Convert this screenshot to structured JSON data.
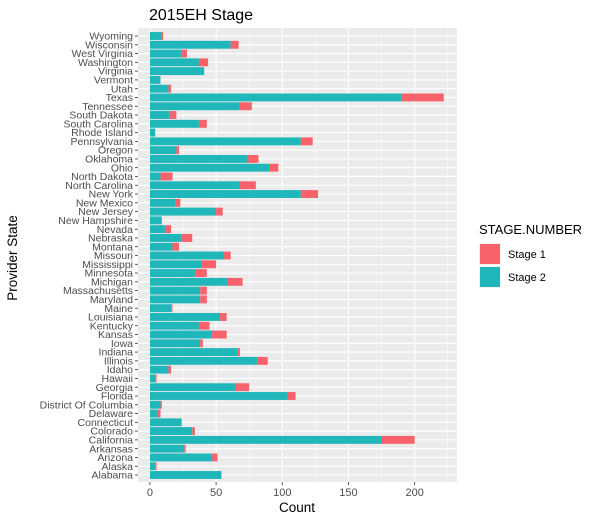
{
  "chart_data": {
    "type": "bar",
    "orientation": "horizontal",
    "stacked": true,
    "title": "2015EH Stage",
    "xlabel": "Count",
    "ylabel": "Provider State",
    "xlim": [
      -9,
      232
    ],
    "x_ticks": [
      0,
      50,
      100,
      150,
      200
    ],
    "grid": true,
    "legend": {
      "title": "STAGE.NUMBER",
      "position": "right"
    },
    "categories": [
      "Alabama",
      "Alaska",
      "Arizona",
      "Arkansas",
      "California",
      "Colorado",
      "Connecticut",
      "Delaware",
      "District Of Columbia",
      "Florida",
      "Georgia",
      "Hawaii",
      "Idaho",
      "Illinois",
      "Indiana",
      "Iowa",
      "Kansas",
      "Kentucky",
      "Louisiana",
      "Maine",
      "Maryland",
      "Massachusetts",
      "Michigan",
      "Minnesota",
      "Mississippi",
      "Missouri",
      "Montana",
      "Nebraska",
      "Nevada",
      "New Hampshire",
      "New Jersey",
      "New Mexico",
      "New York",
      "North Carolina",
      "North Dakota",
      "Ohio",
      "Oklahoma",
      "Oregon",
      "Pennsylvania",
      "Rhode Island",
      "South Carolina",
      "South Dakota",
      "Tennessee",
      "Texas",
      "Utah",
      "Vermont",
      "Virginia",
      "Washington",
      "West Virginia",
      "Wisconsin",
      "Wyoming"
    ],
    "series": [
      {
        "name": "Stage 2",
        "color": "#1FB7BA",
        "values": [
          54,
          4,
          47,
          26,
          175,
          32,
          24,
          6,
          8,
          104,
          65,
          4,
          14,
          81,
          66,
          38,
          47,
          37,
          53,
          16,
          38,
          38,
          59,
          34,
          39,
          56,
          17,
          24,
          12,
          9,
          50,
          19,
          114,
          68,
          8,
          90,
          74,
          20,
          114,
          4,
          37,
          15,
          68,
          190,
          14,
          8,
          41,
          37,
          24,
          61,
          9
        ]
      },
      {
        "name": "Stage 1",
        "color": "#F8636B",
        "values": [
          0,
          1,
          4,
          1,
          25,
          2,
          0,
          2,
          1,
          6,
          10,
          1,
          2,
          8,
          2,
          2,
          11,
          8,
          5,
          1,
          5,
          5,
          11,
          9,
          11,
          5,
          5,
          8,
          4,
          0,
          5,
          4,
          13,
          12,
          9,
          7,
          8,
          2,
          9,
          0,
          6,
          5,
          9,
          32,
          2,
          0,
          0,
          7,
          4,
          6,
          1
        ]
      }
    ]
  }
}
